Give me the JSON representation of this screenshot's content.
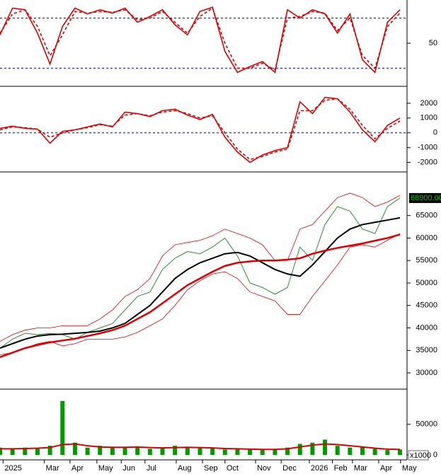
{
  "chart_data": [
    {
      "type": "line",
      "x": [
        0,
        2,
        4,
        6,
        8,
        10,
        12,
        14,
        16,
        18,
        20,
        22,
        24,
        26,
        28,
        30,
        32,
        34,
        36,
        38,
        40,
        42,
        44,
        46,
        48,
        50,
        52,
        54,
        56,
        58,
        60,
        62,
        64
      ],
      "ylim": [
        0,
        100
      ],
      "yticks": [
        50
      ],
      "reference_lines": [
        20,
        80
      ],
      "reference_color": "#00008b",
      "series": [
        {
          "color": "#dd0000",
          "values": [
            60,
            92,
            90,
            62,
            25,
            70,
            92,
            85,
            90,
            86,
            92,
            75,
            82,
            90,
            72,
            60,
            88,
            93,
            40,
            15,
            22,
            28,
            15,
            90,
            80,
            90,
            85,
            62,
            85,
            30,
            15,
            75,
            90
          ]
        },
        {
          "color": "#dd0000",
          "dashed": true,
          "values": [
            62,
            85,
            90,
            70,
            35,
            60,
            88,
            86,
            88,
            87,
            90,
            78,
            80,
            88,
            75,
            62,
            82,
            92,
            50,
            20,
            20,
            26,
            18,
            80,
            82,
            88,
            86,
            65,
            80,
            35,
            20,
            70,
            86
          ]
        }
      ]
    },
    {
      "type": "line",
      "x": [
        0,
        2,
        4,
        6,
        8,
        10,
        12,
        14,
        16,
        18,
        20,
        22,
        24,
        26,
        28,
        30,
        32,
        34,
        36,
        38,
        40,
        42,
        44,
        46,
        48,
        50,
        52,
        54,
        56,
        58,
        60,
        62,
        64
      ],
      "ylim": [
        -2500,
        3000
      ],
      "yticks": [
        -2000,
        -1000,
        0,
        1000,
        2000
      ],
      "reference_lines": [
        0
      ],
      "reference_color": "#00008b",
      "series": [
        {
          "color": "#dd0000",
          "values": [
            300,
            450,
            300,
            250,
            -700,
            100,
            200,
            400,
            600,
            400,
            1400,
            1300,
            1100,
            1500,
            1600,
            1200,
            900,
            1250,
            -300,
            -1300,
            -2000,
            -1500,
            -1200,
            -1000,
            2100,
            1300,
            2400,
            2300,
            1400,
            200,
            -600,
            500,
            1000
          ]
        },
        {
          "color": "#dd0000",
          "dashed": true,
          "values": [
            200,
            400,
            350,
            250,
            -300,
            0,
            200,
            350,
            550,
            450,
            1200,
            1300,
            1150,
            1400,
            1500,
            1300,
            1000,
            1150,
            0,
            -1100,
            -1800,
            -1600,
            -1300,
            -1100,
            1500,
            1500,
            2200,
            2300,
            1600,
            500,
            -400,
            300,
            800
          ]
        }
      ]
    },
    {
      "type": "line",
      "x": [
        0,
        2,
        4,
        6,
        8,
        10,
        12,
        14,
        16,
        18,
        20,
        22,
        24,
        26,
        28,
        30,
        32,
        34,
        36,
        38,
        40,
        42,
        44,
        46,
        48,
        50,
        52,
        54,
        56,
        58,
        60,
        62,
        64
      ],
      "ylim": [
        26700,
        74400
      ],
      "yticks": [
        30000,
        35000,
        40000,
        45000,
        50000,
        55000,
        60000,
        65000
      ],
      "last_price": {
        "value": 68900,
        "label": "68900.00"
      },
      "last_price_color": "#00cc00",
      "series": [
        {
          "color": "#2e8b2e",
          "width": 1,
          "values": [
            35500,
            37500,
            38800,
            38500,
            38800,
            38500,
            37500,
            39000,
            40000,
            41000,
            44000,
            47000,
            48000,
            53000,
            55500,
            57000,
            56500,
            58000,
            60000,
            56000,
            50000,
            49000,
            47500,
            49000,
            58000,
            55000,
            63000,
            67000,
            66000,
            62000,
            61000,
            67000,
            68900
          ]
        },
        {
          "color": "#dd0000",
          "width": 0.8,
          "values": [
            37000,
            38500,
            39500,
            40000,
            40000,
            40500,
            40500,
            40500,
            42000,
            44000,
            47000,
            48500,
            51000,
            56000,
            58500,
            59000,
            59500,
            60500,
            62000,
            61000,
            60000,
            58500,
            55000,
            55000,
            62000,
            63000,
            66000,
            69000,
            70000,
            69000,
            67000,
            68000,
            69500
          ]
        },
        {
          "color": "#dd0000",
          "width": 0.8,
          "values": [
            34000,
            34500,
            35500,
            36500,
            37000,
            36000,
            36500,
            37500,
            37500,
            37500,
            38000,
            39000,
            40500,
            42000,
            45000,
            48500,
            50500,
            52000,
            52500,
            51000,
            48000,
            47000,
            46000,
            43000,
            43000,
            47000,
            50500,
            54000,
            58000,
            58500,
            58000,
            59500,
            61000
          ]
        },
        {
          "color": "#000000",
          "width": 2,
          "values": [
            35500,
            36500,
            37500,
            38200,
            38500,
            38600,
            38800,
            39000,
            39300,
            40000,
            41000,
            43000,
            45000,
            48000,
            51000,
            53000,
            54500,
            55500,
            56500,
            56800,
            56000,
            54500,
            53000,
            52000,
            51500,
            54000,
            57000,
            60000,
            62000,
            63000,
            63500,
            64000,
            64500
          ]
        },
        {
          "color": "#dd0000",
          "width": 2.5,
          "values": [
            33500,
            34500,
            35500,
            36200,
            36800,
            37200,
            37600,
            38200,
            38800,
            39500,
            40500,
            42000,
            43500,
            45500,
            47500,
            49500,
            51000,
            52500,
            53800,
            54500,
            54800,
            55000,
            55000,
            55200,
            55500,
            56500,
            57200,
            57800,
            58300,
            58800,
            59400,
            60000,
            60800
          ]
        }
      ]
    },
    {
      "type": "bar",
      "x": [
        0,
        2,
        4,
        6,
        8,
        10,
        12,
        14,
        16,
        18,
        20,
        22,
        24,
        26,
        28,
        30,
        32,
        34,
        36,
        38,
        40,
        42,
        44,
        46,
        48,
        50,
        52,
        54,
        56,
        58,
        60,
        62,
        64
      ],
      "ylim": [
        -8000,
        105000
      ],
      "yticks": [
        0,
        50000
      ],
      "unit_label": "x1000",
      "xlim": [
        0,
        64
      ],
      "xticks": [
        {
          "value": 0.5,
          "label": "2025"
        },
        {
          "value": 7.1,
          "label": "Mar"
        },
        {
          "value": 11.2,
          "label": "Apr"
        },
        {
          "value": 15.5,
          "label": "May"
        },
        {
          "value": 19.4,
          "label": "Jun"
        },
        {
          "value": 23.2,
          "label": "Jul"
        },
        {
          "value": 28.2,
          "label": "Aug"
        },
        {
          "value": 32.4,
          "label": "Sep"
        },
        {
          "value": 36,
          "label": "Oct"
        },
        {
          "value": 40.9,
          "label": "Nov"
        },
        {
          "value": 45,
          "label": "Dec"
        },
        {
          "value": 49.5,
          "label": "2026"
        },
        {
          "value": 53.2,
          "label": "Feb"
        },
        {
          "value": 56.4,
          "label": "Mar"
        },
        {
          "value": 60.6,
          "label": "Apr"
        },
        {
          "value": 64.1,
          "label": "May"
        }
      ],
      "series": [
        {
          "color": "#009900",
          "values": [
            12000,
            10000,
            12000,
            11000,
            15000,
            88000,
            20000,
            12000,
            15000,
            12000,
            13000,
            14000,
            10000,
            12000,
            15000,
            13000,
            12000,
            12000,
            9000,
            10000,
            9000,
            8000,
            10000,
            12000,
            18000,
            20000,
            25000,
            15000,
            12000,
            14000,
            10000,
            8000,
            9000
          ]
        },
        {
          "color": "#dd0000",
          "type": "line",
          "width": 2,
          "values": [
            10000,
            10000,
            10500,
            11000,
            12000,
            17000,
            18000,
            15000,
            13000,
            12500,
            12500,
            13000,
            12000,
            11500,
            12000,
            12500,
            12000,
            11500,
            10500,
            10000,
            9500,
            9000,
            9000,
            10000,
            13000,
            16000,
            18000,
            17000,
            15000,
            13000,
            11000,
            9500,
            9000
          ]
        }
      ]
    }
  ]
}
